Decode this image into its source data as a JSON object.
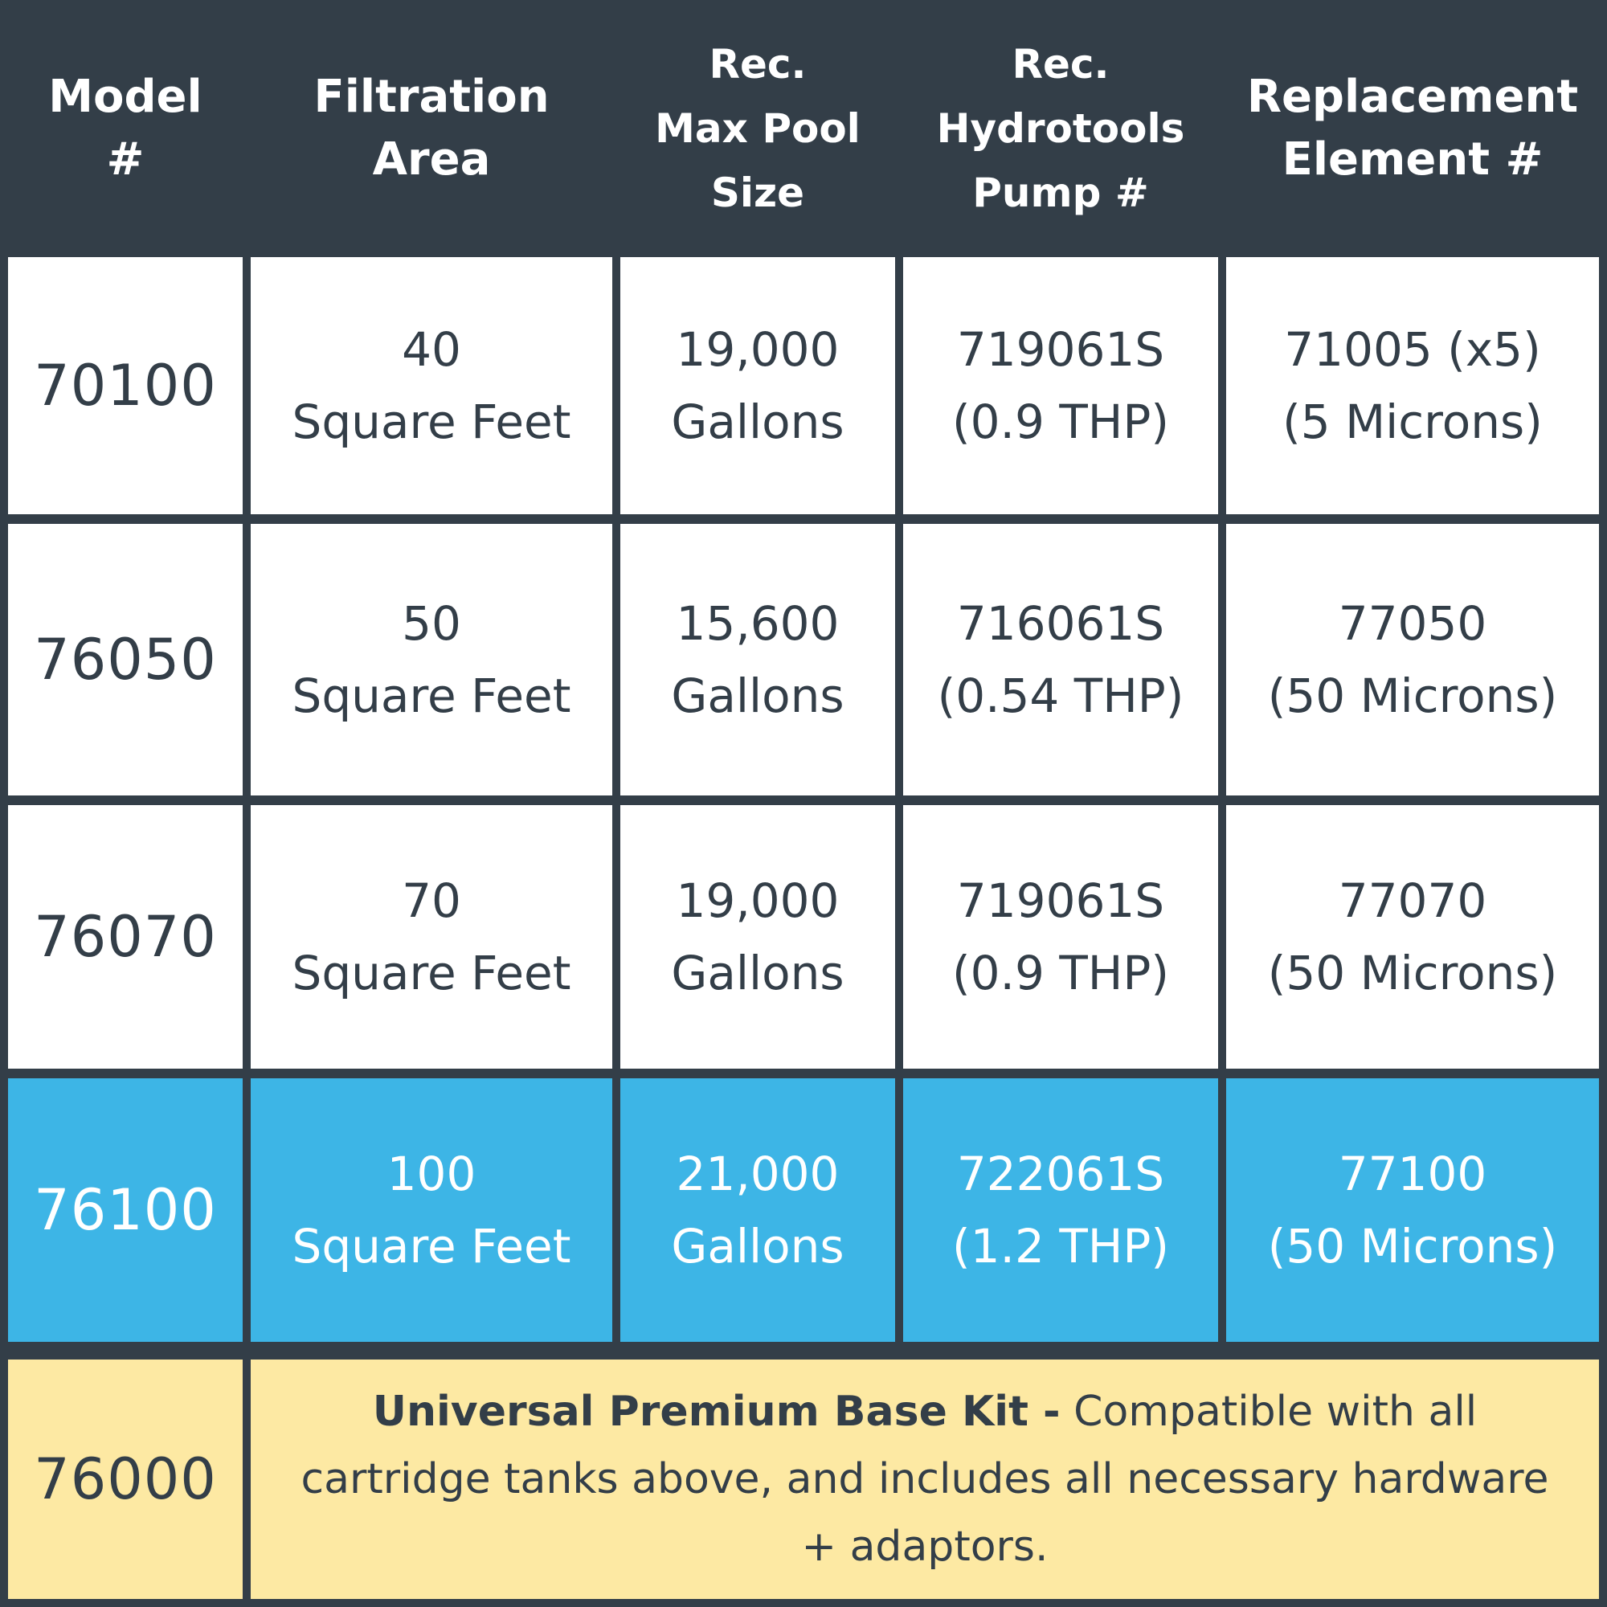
{
  "headers": [
    {
      "line1": "Model",
      "line2": "#",
      "line3": ""
    },
    {
      "line1": "Filtration",
      "line2": "Area",
      "line3": ""
    },
    {
      "line1": "Rec.",
      "line2": "Max Pool",
      "line3": "Size"
    },
    {
      "line1": "Rec.",
      "line2": "Hydrotools",
      "line3": "Pump #"
    },
    {
      "line1": "Replacement",
      "line2": "Element #",
      "line3": ""
    }
  ],
  "rows": [
    {
      "model": "70100",
      "area": [
        "40",
        "Square Feet"
      ],
      "pool": [
        "19,000",
        "Gallons"
      ],
      "pump": [
        "719061S",
        "(0.9 THP)"
      ],
      "element": [
        "71005 (x5)",
        "(5 Microns)"
      ]
    },
    {
      "model": "76050",
      "area": [
        "50",
        "Square Feet"
      ],
      "pool": [
        "15,600",
        "Gallons"
      ],
      "pump": [
        "716061S",
        "(0.54 THP)"
      ],
      "element": [
        "77050",
        "(50 Microns)"
      ]
    },
    {
      "model": "76070",
      "area": [
        "70",
        "Square Feet"
      ],
      "pool": [
        "19,000",
        "Gallons"
      ],
      "pump": [
        "719061S",
        "(0.9 THP)"
      ],
      "element": [
        "77070",
        "(50 Microns)"
      ]
    },
    {
      "model": "76100",
      "area": [
        "100",
        "Square Feet"
      ],
      "pool": [
        "21,000",
        "Gallons"
      ],
      "pump": [
        "722061S",
        "(1.2 THP)"
      ],
      "element": [
        "77100",
        "(50 Microns)"
      ]
    }
  ],
  "footer": {
    "model": "76000",
    "title": "Universal Premium Base Kit -",
    "description": " Compatible with all cartridge tanks above, and includes all necessary hardware + adaptors."
  },
  "colors": {
    "header_bg": "#333e48",
    "highlight_row": "#3db5e6",
    "footer_row": "#fde9a3"
  }
}
